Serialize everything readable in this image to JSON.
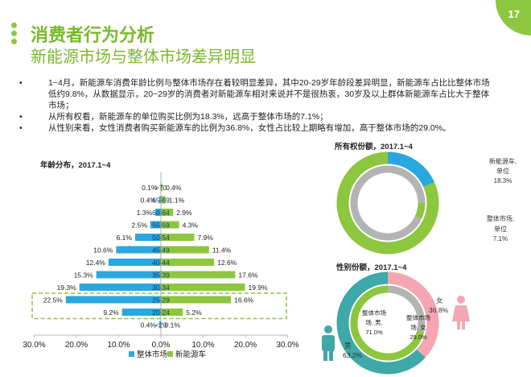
{
  "page": {
    "number": "17",
    "title": "消费者行为分析",
    "subtitle": "新能源市场与整体市场差异明显",
    "bullets": [
      "1~4月，新能源车消费年龄比例与整体市场存在着较明显差异，其中20-29岁年龄段差异明显，新能源车占比比整体市场低约9.8%，从数据显示，20~29岁的消费者对新能源车相对来说并不是很热衷，30岁及以上群体新能源车占比大于整体市场；",
      "从所有权看，新能源车的单位购买比例为18.3%，远高于整体市场的7.1%；",
      "从性别来看，女性消费者购买新能源车的比例为36.8%，女性占比较上期略有增加，高于整体市场的29.0%。"
    ]
  },
  "colors": {
    "overall": "#29a8e0",
    "nev": "#8dc63f",
    "grey": "#b3b3b3",
    "teal": "#3fa8a8",
    "pink": "#f4a6b2",
    "accent": "#7ab82c"
  },
  "chart_data": [
    {
      "type": "bar",
      "title": "年龄分布，2017.1~4",
      "orientation": "horizontal-butterfly",
      "categories": [
        "<20",
        "20-24",
        "25-29",
        "30-34",
        "35-39",
        "40-44",
        "45-49",
        "50-54",
        "55-59",
        "60-64",
        "65-69",
        ">70"
      ],
      "series": [
        {
          "name": "整体市场",
          "values": [
            0.4,
            9.2,
            22.5,
            19.3,
            15.3,
            12.4,
            10.6,
            6.1,
            2.5,
            1.3,
            0.4,
            0.1
          ],
          "labels": [
            "0.4%",
            "9.2%",
            "22.5%",
            "19.3%",
            "15.3%",
            "12.4%",
            "10.6%",
            "6.1%",
            "2.5%",
            "1.3%",
            "0.4%",
            "0.1%"
          ]
        },
        {
          "name": "新能源车",
          "values": [
            0.1,
            5.2,
            16.6,
            19.9,
            17.6,
            12.6,
            11.4,
            7.9,
            4.3,
            2.9,
            1.1,
            0.4
          ],
          "labels": [
            "0.1%",
            "5.2%",
            "16.6%",
            "19.9%",
            "17.6%",
            "12.6%",
            "11.4%",
            "7.9%",
            "4.3%",
            "2.9%",
            "1.1%",
            "0.4%"
          ]
        }
      ],
      "xlim": [
        -30,
        30
      ],
      "x_ticks": [
        "30.0%",
        "20.0%",
        "10.0%",
        "0.0%",
        "10.0%",
        "20.0%",
        "30.0%"
      ],
      "highlight": [
        "20-24",
        "25-29"
      ],
      "legend": "bottom"
    },
    {
      "type": "pie",
      "variant": "nested-donut",
      "title": "所有权份额，2017.1~4",
      "rings": [
        {
          "ring": "outer",
          "slices": [
            {
              "label": "新能源车,单位",
              "value": 18.3,
              "value_label": "18.3%"
            },
            {
              "label": "",
              "value": 81.7
            }
          ]
        },
        {
          "ring": "inner",
          "slices": [
            {
              "label": "整体市场,单位",
              "value": 7.1,
              "value_label": "7.1%"
            },
            {
              "label": "",
              "value": 92.9
            }
          ]
        }
      ]
    },
    {
      "type": "pie",
      "variant": "nested-donut",
      "title": "性别份额，2017.1~4",
      "rings": [
        {
          "ring": "outer",
          "slices": [
            {
              "label": "女",
              "value": 36.8,
              "value_label": "36.8%"
            },
            {
              "label": "男",
              "value": 63.2,
              "value_label": "63.2%"
            }
          ]
        },
        {
          "ring": "inner",
          "slices": [
            {
              "label": "整体市场,女",
              "value": 29.0,
              "value_label": "29.0%"
            },
            {
              "label": "整体市场,男",
              "value": 71.0,
              "value_label": "71.0%"
            }
          ]
        }
      ]
    }
  ]
}
